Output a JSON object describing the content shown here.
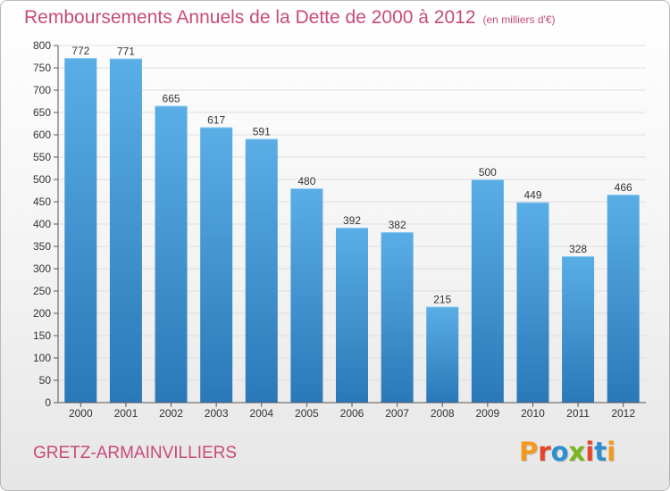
{
  "chart_data": {
    "type": "bar",
    "title": "Remboursements Annuels de la Dette de 2000 à 2012",
    "subtitle": "(en milliers d'€)",
    "categories": [
      "2000",
      "2001",
      "2002",
      "2003",
      "2004",
      "2005",
      "2006",
      "2007",
      "2008",
      "2009",
      "2010",
      "2011",
      "2012"
    ],
    "values": [
      772,
      771,
      665,
      617,
      591,
      480,
      392,
      382,
      215,
      500,
      449,
      328,
      466
    ],
    "ylim": [
      0,
      800
    ],
    "yticks": [
      0,
      50,
      100,
      150,
      200,
      250,
      300,
      350,
      400,
      450,
      500,
      550,
      600,
      650,
      700,
      750,
      800
    ],
    "grid": true,
    "bar_color_top": "#5aaee6",
    "bar_color_bottom": "#2a78b8"
  },
  "footer": {
    "city": "GRETZ-ARMAINVILLIERS",
    "logo_text": "Proxiti",
    "logo_colors": [
      "#f39a1c",
      "#e8442c",
      "#2e8fd0",
      "#7ab51d",
      "#e8442c",
      "#2e8fd0",
      "#f39a1c"
    ]
  },
  "colors": {
    "title": "#c84a7a",
    "grid": "#dedede",
    "axis": "#555555"
  }
}
